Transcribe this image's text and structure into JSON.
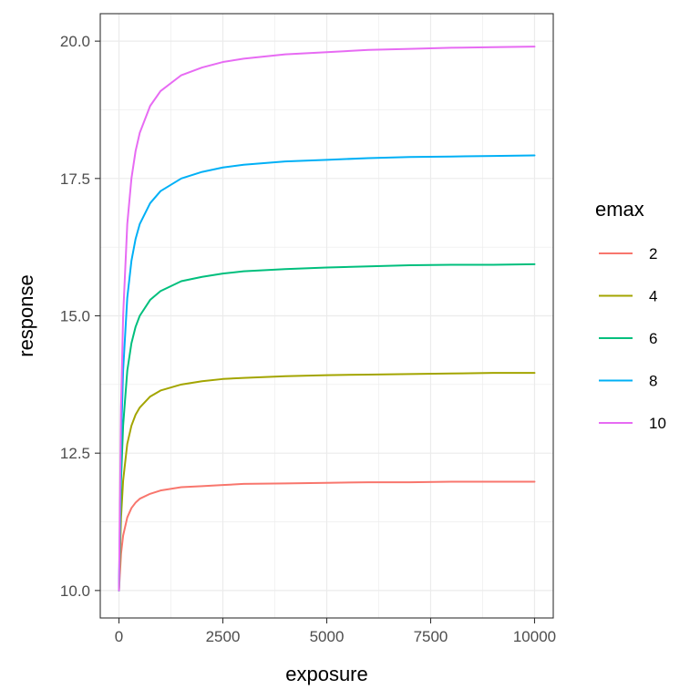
{
  "chart_data": {
    "type": "line",
    "title": "",
    "xlabel": "exposure",
    "ylabel": "response",
    "xlim": [
      -450,
      10450
    ],
    "ylim": [
      9.5,
      20.5
    ],
    "x_ticks": [
      0,
      2500,
      5000,
      7500,
      10000
    ],
    "x_tick_labels": [
      "0",
      "2500",
      "5000",
      "7500",
      "10000"
    ],
    "y_ticks": [
      10.0,
      12.5,
      15.0,
      17.5,
      20.0
    ],
    "y_tick_labels": [
      "10.0",
      "12.5",
      "15.0",
      "17.5",
      "20.0"
    ],
    "grid": true,
    "legend": {
      "title": "emax",
      "position": "right"
    },
    "x": [
      0,
      50,
      100,
      200,
      300,
      400,
      500,
      750,
      1000,
      1500,
      2000,
      2500,
      3000,
      4000,
      5000,
      6000,
      7000,
      8000,
      9000,
      10000
    ],
    "series": [
      {
        "name": "2",
        "color": "#F8766D",
        "values": [
          10.0,
          10.67,
          11.0,
          11.33,
          11.5,
          11.6,
          11.67,
          11.76,
          11.82,
          11.88,
          11.9,
          11.92,
          11.94,
          11.95,
          11.96,
          11.97,
          11.97,
          11.98,
          11.98,
          11.98
        ]
      },
      {
        "name": "4",
        "color": "#A3A500",
        "values": [
          10.0,
          11.33,
          12.0,
          12.67,
          13.0,
          13.2,
          13.33,
          13.53,
          13.64,
          13.75,
          13.81,
          13.85,
          13.87,
          13.9,
          13.92,
          13.93,
          13.94,
          13.95,
          13.96,
          13.96
        ]
      },
      {
        "name": "6",
        "color": "#00BF7D",
        "values": [
          10.0,
          12.0,
          13.0,
          14.0,
          14.5,
          14.8,
          15.0,
          15.29,
          15.45,
          15.63,
          15.71,
          15.77,
          15.81,
          15.85,
          15.88,
          15.9,
          15.92,
          15.93,
          15.93,
          15.94
        ]
      },
      {
        "name": "8",
        "color": "#00B0F6",
        "values": [
          10.0,
          12.67,
          14.0,
          15.33,
          16.0,
          16.4,
          16.67,
          17.05,
          17.27,
          17.5,
          17.62,
          17.7,
          17.75,
          17.81,
          17.84,
          17.87,
          17.89,
          17.9,
          17.91,
          17.92
        ]
      },
      {
        "name": "10",
        "color": "#E76BF3",
        "values": [
          10.0,
          13.33,
          15.0,
          16.67,
          17.5,
          18.0,
          18.33,
          18.82,
          19.09,
          19.38,
          19.52,
          19.62,
          19.68,
          19.76,
          19.8,
          19.84,
          19.86,
          19.88,
          19.89,
          19.9
        ]
      }
    ]
  }
}
